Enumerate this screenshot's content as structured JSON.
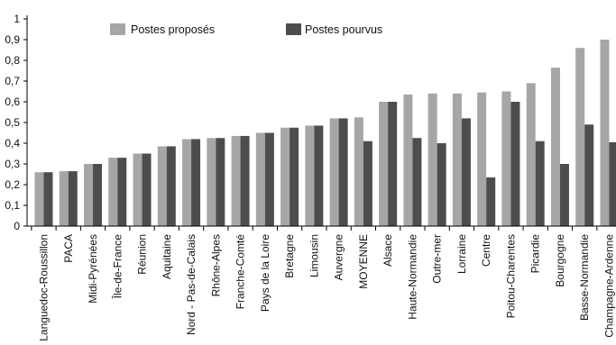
{
  "chart_data": {
    "type": "bar",
    "ylim": [
      0,
      1
    ],
    "yticks": [
      "0",
      "0,1",
      "0,2",
      "0,3",
      "0,4",
      "0,5",
      "0,6",
      "0,7",
      "0,8",
      "0,9",
      "1"
    ],
    "grid": false,
    "legend_position": "top-left",
    "categories": [
      "Languedoc-Roussillon",
      "PACA",
      "Midi-Pyrénées",
      "Île-de-France",
      "Réunion",
      "Aquitaine",
      "Nord - Pas-de-Calais",
      "Rhône-Alpes",
      "Franche-Comté",
      "Pays de la Loire",
      "Bretagne",
      "Limousin",
      "Auvergne",
      "MOYENNE",
      "Alsace",
      "Haute-Normandie",
      "Outre-mer",
      "Lorraine",
      "Centre",
      "Poitou-Charentes",
      "Picardie",
      "Bourgogne",
      "Basse-Normandie",
      "Champagne-Ardenne"
    ],
    "series": [
      {
        "name": "Postes proposés",
        "color": "#a6a6a6",
        "values": [
          0.26,
          0.265,
          0.3,
          0.33,
          0.35,
          0.385,
          0.42,
          0.425,
          0.435,
          0.45,
          0.475,
          0.485,
          0.52,
          0.525,
          0.6,
          0.635,
          0.64,
          0.64,
          0.645,
          0.65,
          0.69,
          0.765,
          0.86,
          0.9
        ]
      },
      {
        "name": "Postes pourvus",
        "color": "#4d4d4d",
        "values": [
          0.26,
          0.265,
          0.3,
          0.33,
          0.35,
          0.385,
          0.42,
          0.425,
          0.435,
          0.45,
          0.475,
          0.485,
          0.52,
          0.41,
          0.6,
          0.425,
          0.4,
          0.52,
          0.235,
          0.6,
          0.41,
          0.3,
          0.49,
          0.405
        ]
      }
    ]
  }
}
